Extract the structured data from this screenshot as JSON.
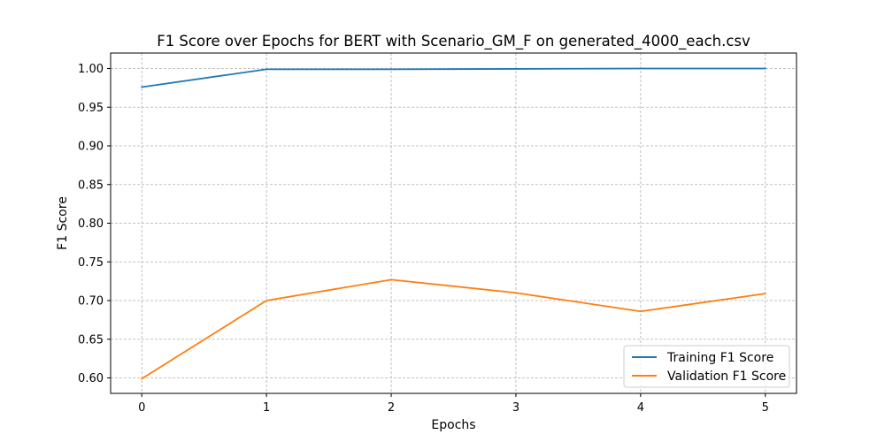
{
  "chart_data": {
    "type": "line",
    "title": "F1 Score over Epochs for BERT with Scenario_GM_F on generated_4000_each.csv",
    "xlabel": "Epochs",
    "ylabel": "F1 Score",
    "x": [
      0,
      1,
      2,
      3,
      4,
      5
    ],
    "x_ticks": [
      "0",
      "1",
      "2",
      "3",
      "4",
      "5"
    ],
    "y_ticks": [
      "0.60",
      "0.65",
      "0.70",
      "0.75",
      "0.80",
      "0.85",
      "0.90",
      "0.95",
      "1.00"
    ],
    "xlim": [
      -0.25,
      5.25
    ],
    "ylim": [
      0.58,
      1.02
    ],
    "grid": true,
    "legend_position": "lower-right",
    "series": [
      {
        "name": "Training F1 Score",
        "color": "#1f77b4",
        "values": [
          0.976,
          0.999,
          0.999,
          0.9995,
          1.0,
          1.0
        ]
      },
      {
        "name": "Validation F1 Score",
        "color": "#ff7f0e",
        "values": [
          0.599,
          0.7,
          0.727,
          0.71,
          0.686,
          0.709
        ]
      }
    ]
  }
}
